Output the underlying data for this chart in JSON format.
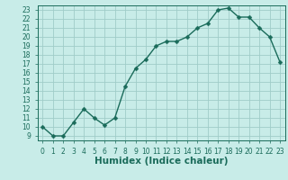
{
  "title": "",
  "xlabel": "Humidex (Indice chaleur)",
  "ylabel": "",
  "x": [
    0,
    1,
    2,
    3,
    4,
    5,
    6,
    7,
    8,
    9,
    10,
    11,
    12,
    13,
    14,
    15,
    16,
    17,
    18,
    19,
    20,
    21,
    22,
    23
  ],
  "y": [
    10,
    9,
    9,
    10.5,
    12,
    11,
    10.2,
    11,
    14.5,
    16.5,
    17.5,
    19,
    19.5,
    19.5,
    20,
    21,
    21.5,
    23,
    23.2,
    22.2,
    22.2,
    21,
    20,
    17.2
  ],
  "line_color": "#1a6b5a",
  "marker": "D",
  "marker_size": 2.5,
  "bg_color": "#c8ece8",
  "grid_color": "#a0ccc8",
  "xlim": [
    -0.5,
    23.5
  ],
  "ylim": [
    8.5,
    23.5
  ],
  "xticks": [
    0,
    1,
    2,
    3,
    4,
    5,
    6,
    7,
    8,
    9,
    10,
    11,
    12,
    13,
    14,
    15,
    16,
    17,
    18,
    19,
    20,
    21,
    22,
    23
  ],
  "yticks": [
    9,
    10,
    11,
    12,
    13,
    14,
    15,
    16,
    17,
    18,
    19,
    20,
    21,
    22,
    23
  ],
  "tick_label_fontsize": 5.5,
  "xlabel_fontsize": 7.5
}
